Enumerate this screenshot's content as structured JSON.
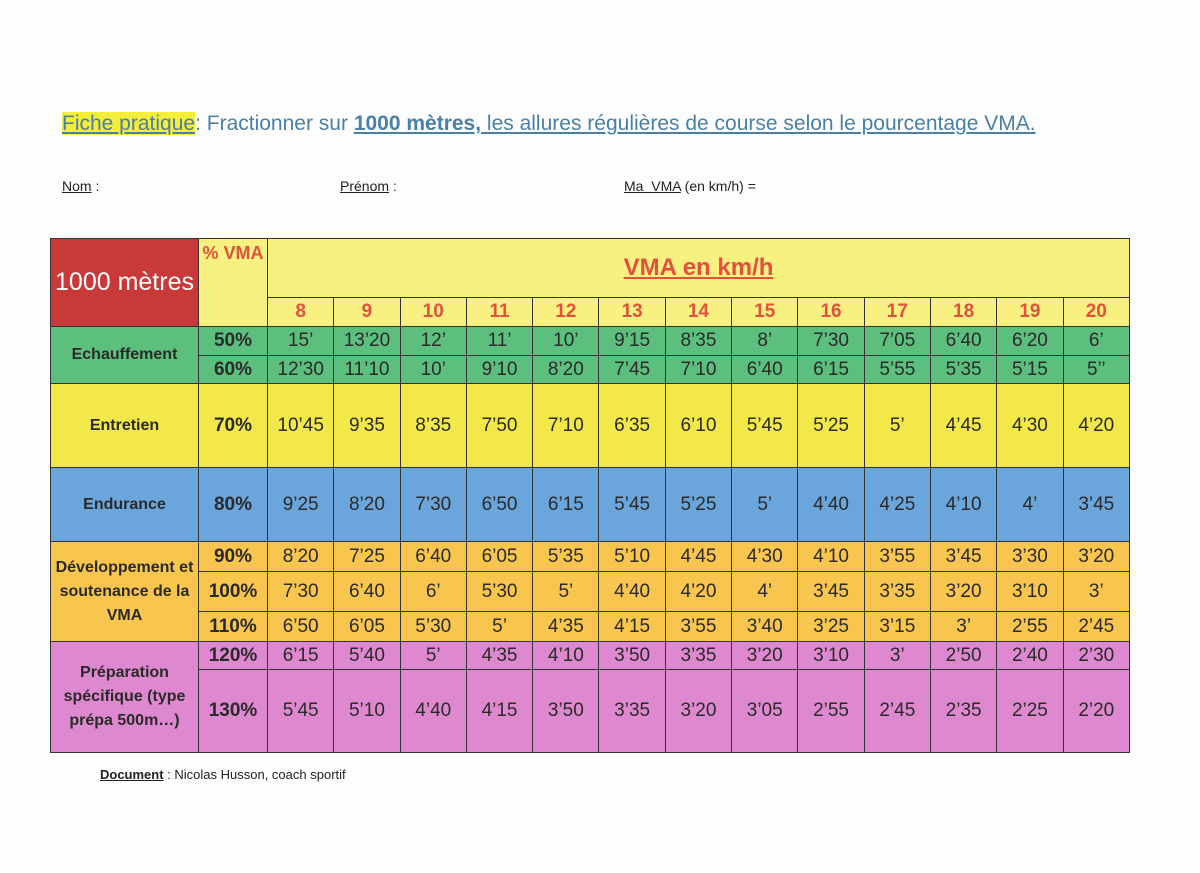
{
  "header": {
    "label": "Fiche pratique",
    "sep": ":",
    "text1": " Fractionner sur ",
    "distance": "1000 mètres,",
    "text2": " les allures régulières de course selon le pourcentage VMA."
  },
  "fields": {
    "nom": "Nom",
    "nom_sep": " :",
    "prenom": "Prénom",
    "prenom_sep": " :",
    "vma": "Ma  VMA",
    "vma_rest": " (en km/h) ="
  },
  "table": {
    "corner": "1000 mètres",
    "pct_header": "% VMA",
    "vma_header": "VMA en km/h",
    "speeds": [
      "8",
      "9",
      "10",
      "11",
      "12",
      "13",
      "14",
      "15",
      "16",
      "17",
      "18",
      "19",
      "20"
    ],
    "groups": [
      {
        "name": "Echauffement",
        "color": "#5cbf7e",
        "rows": [
          {
            "pct": "50%",
            "values": [
              "15’",
              "13’20",
              "12’",
              "11’",
              "10’",
              "9’15",
              "8’35",
              "8’",
              "7’30",
              "7’05",
              "6’40",
              "6’20",
              "6’"
            ]
          },
          {
            "pct": "60%",
            "values": [
              "12’30",
              "11’10",
              "10’",
              "9’10",
              "8’20",
              "7’45",
              "7’10",
              "6’40",
              "6’15",
              "5’55",
              "5’35",
              "5’15",
              "5’’"
            ]
          }
        ]
      },
      {
        "name": "Entretien",
        "color": "#f2e84a",
        "rows": [
          {
            "pct": "70%",
            "values": [
              "10’45",
              "9’35",
              "8’35",
              "7’50",
              "7’10",
              "6’35",
              "6’10",
              "5’45",
              "5’25",
              "5’",
              "4’45",
              "4’30",
              "4’20"
            ]
          }
        ]
      },
      {
        "name": "Endurance",
        "color": "#6aa6dc",
        "rows": [
          {
            "pct": "80%",
            "values": [
              "9’25",
              "8’20",
              "7’30",
              "6’50",
              "6’15",
              "5’45",
              "5’25",
              "5’",
              "4’40",
              "4’25",
              "4’10",
              "4’",
              "3’45"
            ]
          }
        ]
      },
      {
        "name": "Développement et soutenance de la VMA",
        "color": "#f8c54e",
        "rows": [
          {
            "pct": "90%",
            "values": [
              "8’20",
              "7’25",
              "6’40",
              "6’05",
              "5’35",
              "5’10",
              "4’45",
              "4’30",
              "4’10",
              "3’55",
              "3’45",
              "3’30",
              "3’20"
            ]
          },
          {
            "pct": "100%",
            "values": [
              "7’30",
              "6’40",
              "6’",
              "5’30",
              "5’",
              "4’40",
              "4’20",
              "4’",
              "3’45",
              "3’35",
              "3’20",
              "3’10",
              "3’"
            ]
          },
          {
            "pct": "110%",
            "values": [
              "6’50",
              "6’05",
              "5’30",
              "5’",
              "4’35",
              "4’15",
              "3’55",
              "3’40",
              "3’25",
              "3’15",
              "3’",
              "2’55",
              "2’45"
            ]
          }
        ]
      },
      {
        "name": "Préparation spécifique (type prépa 500m…)",
        "color": "#de88cf",
        "rows": [
          {
            "pct": "120%",
            "values": [
              "6’15",
              "5’40",
              "5’",
              "4’35",
              "4’10",
              "3’50",
              "3’35",
              "3’20",
              "3’10",
              "3’",
              "2’50",
              "2’40",
              "2’30"
            ]
          },
          {
            "pct": "130%",
            "values": [
              "5’45",
              "5’10",
              "4’40",
              "4’15",
              "3’50",
              "3’35",
              "3’20",
              "3’05",
              "2’55",
              "2’45",
              "2’35",
              "2’25",
              "2’20"
            ]
          }
        ]
      }
    ]
  },
  "footer": {
    "label": "Document",
    "text": " : Nicolas Husson, coach sportif"
  }
}
